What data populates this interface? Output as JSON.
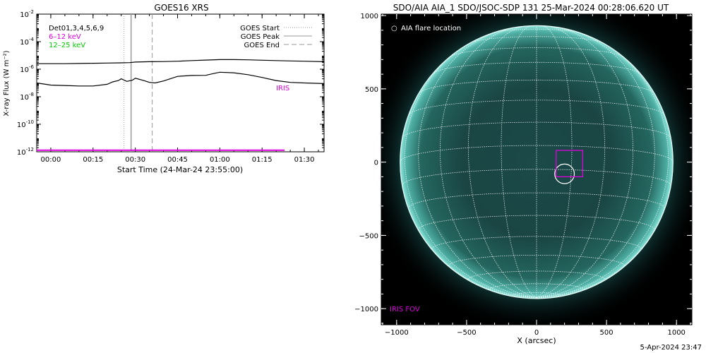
{
  "chart_data": [
    {
      "type": "line",
      "title": "GOES16 XRS",
      "xlabel": "Start Time (24-Mar-24 23:55:00)",
      "ylabel": "X-ray Flux (W m⁻²)",
      "yscale": "log",
      "ylim": [
        1e-12,
        0.01
      ],
      "xlim_minutes": [
        -5,
        97
      ],
      "x_tick_labels": [
        "00:00",
        "00:15",
        "00:30",
        "00:45",
        "01:00",
        "01:15",
        "01:30"
      ],
      "x_tick_minutes": [
        0,
        15,
        30,
        45,
        60,
        75,
        90
      ],
      "y_tick_labels": [
        {
          "base": "10",
          "exp": "-2",
          "value": 0.01
        },
        {
          "base": "10",
          "exp": "-4",
          "value": 0.0001
        },
        {
          "base": "10",
          "exp": "-6",
          "value": 1e-06
        },
        {
          "base": "10",
          "exp": "-8",
          "value": 1e-08
        },
        {
          "base": "10",
          "exp": "-10",
          "value": 1e-10
        },
        {
          "base": "10",
          "exp": "-12",
          "value": 1e-12
        }
      ],
      "legend_left": [
        {
          "label": "Det01,3,4,5,6,9",
          "color": "#000000"
        },
        {
          "label": "6–12 keV",
          "color": "#dd00dd"
        },
        {
          "label": "12–25 keV",
          "color": "#00cc00"
        }
      ],
      "legend_right": [
        {
          "label": "GOES Start",
          "style": "dotted",
          "color": "#999999"
        },
        {
          "label": "GOES Peak",
          "style": "solid",
          "color": "#999999"
        },
        {
          "label": "GOES End",
          "style": "dashed",
          "color": "#999999"
        }
      ],
      "markers_minutes": {
        "start": 26,
        "peak": 28.5,
        "end": 36
      },
      "annotation": {
        "text": "IRIS",
        "color": "#dd00dd"
      },
      "series": [
        {
          "color": "#000000",
          "x": [
            -5,
            0,
            5,
            10,
            15,
            20,
            25,
            28,
            30,
            35,
            40,
            45,
            50,
            55,
            60,
            65,
            70,
            75,
            80,
            85,
            90,
            97
          ],
          "y": [
            2.5e-06,
            2.5e-06,
            2.5e-06,
            2.6e-06,
            2.7e-06,
            2.8e-06,
            2.9e-06,
            3e-06,
            3.3e-06,
            3.5e-06,
            3.6e-06,
            3.8e-06,
            4.2e-06,
            4.6e-06,
            5e-06,
            5e-06,
            4.8e-06,
            4.5e-06,
            4.2e-06,
            4e-06,
            3.8e-06,
            3.5e-06
          ]
        },
        {
          "color": "#000000",
          "x": [
            -5,
            0,
            5,
            10,
            15,
            20,
            22,
            24,
            25,
            27,
            29,
            30,
            33,
            35,
            37,
            40,
            45,
            50,
            55,
            58,
            60,
            65,
            70,
            75,
            80,
            85,
            90,
            97
          ],
          "y": [
            1e-07,
            7e-08,
            6.5e-08,
            6e-08,
            6e-08,
            8e-08,
            1.2e-07,
            1.5e-07,
            2e-07,
            1.3e-07,
            1.6e-07,
            2.2e-07,
            1.5e-07,
            1.1e-07,
            1e-07,
            1.4e-07,
            3e-07,
            3.5e-07,
            3.6e-07,
            5e-07,
            6e-07,
            5.5e-07,
            4e-07,
            2.5e-07,
            1.5e-07,
            1.1e-07,
            1e-07,
            9e-08
          ]
        },
        {
          "color": "#dd00dd",
          "x": [
            -5,
            83
          ],
          "y": [
            1.3e-12,
            1.3e-12
          ]
        }
      ]
    },
    {
      "type": "scatter",
      "title": "SDO/AIA AIA_1 SDO/JSOC-SDP 131 25-Mar-2024 00:28:06.620 UT",
      "xlabel": "X (arcsec)",
      "ylabel": "",
      "xlim": [
        -1110,
        1110
      ],
      "ylim": [
        -1110,
        1010
      ],
      "x_tick_labels": [
        "−1000",
        "−500",
        "0",
        "500",
        "1000"
      ],
      "x_tick_values": [
        -1000,
        -500,
        0,
        500,
        1000
      ],
      "y_tick_labels": [
        "1000",
        "500",
        "0",
        "−500",
        "−1000"
      ],
      "y_tick_values": [
        1000,
        500,
        0,
        -500,
        -1000
      ],
      "solar_radius_arcsec": 975,
      "grid": true,
      "legend": {
        "symbol": "○",
        "text": "AIA flare location",
        "color": "#ffffff"
      },
      "flare_location": {
        "x": 200,
        "y": -80,
        "radius": 70
      },
      "iris_fov": {
        "label": "IRIS FOV",
        "color": "#dd00dd",
        "x": [
          140,
          330
        ],
        "y": [
          -100,
          80
        ]
      }
    }
  ],
  "timestamp": "5-Apr-2024 23:47"
}
